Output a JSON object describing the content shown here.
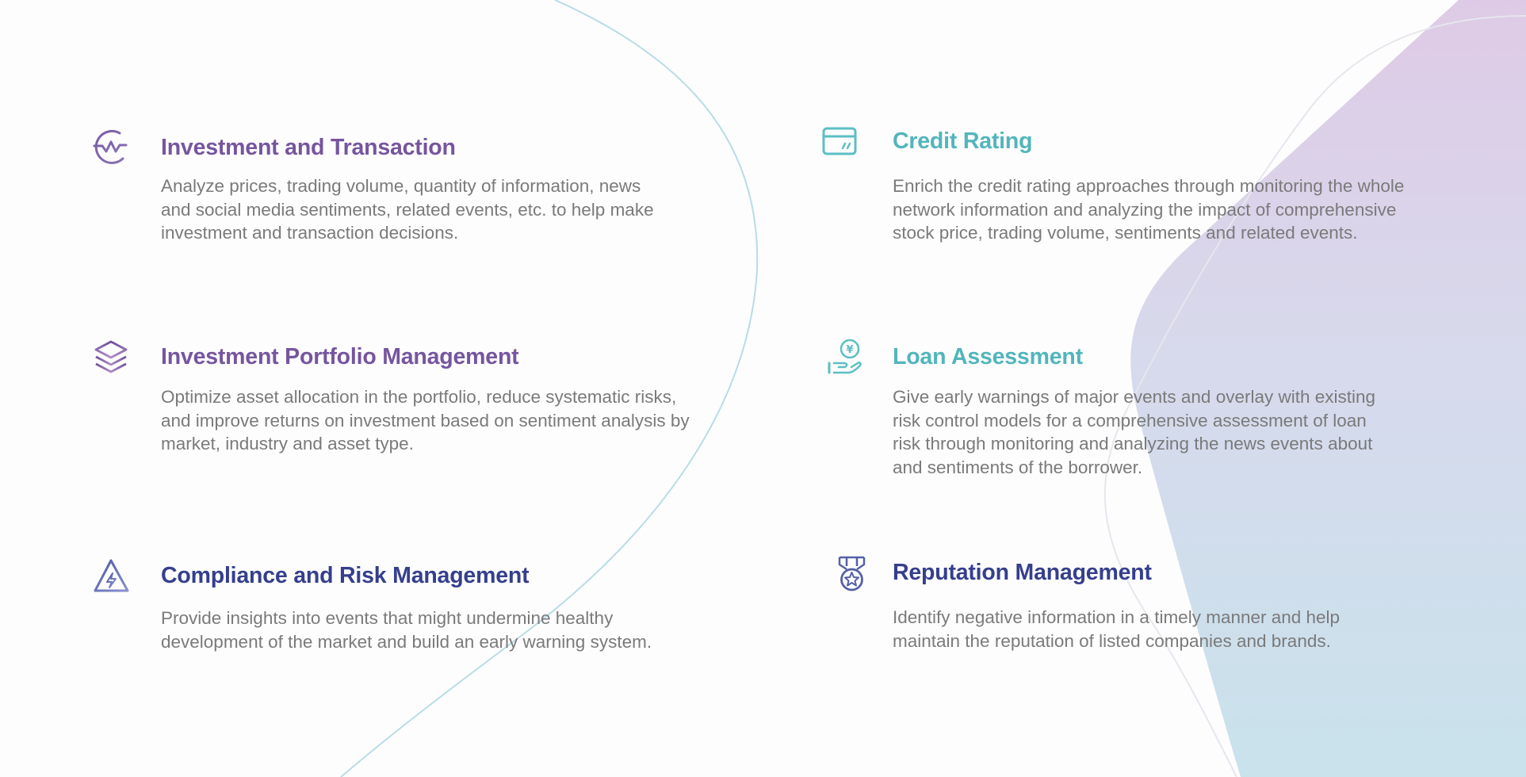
{
  "colors": {
    "purple": "#76559f",
    "teal": "#52b5bb",
    "navy": "#353f8c",
    "body_text": "#7a7a7a",
    "background": "#fdfdfd"
  },
  "features": [
    {
      "icon": "market-wave-icon",
      "title": "Investment and Transaction",
      "description": "Analyze prices, trading volume, quantity of information, news\nand social media sentiments, related events, etc. to help make\ninvestment and transaction decisions."
    },
    {
      "icon": "credit-card-icon",
      "title": "Credit Rating",
      "description": "Enrich the credit rating approaches through monitoring the whole\nnetwork information and analyzing the impact of comprehensive\nstock price, trading volume, sentiments and related events."
    },
    {
      "icon": "layers-icon",
      "title": "Investment Portfolio Management",
      "description": "Optimize asset allocation in the portfolio, reduce systematic risks,\nand improve returns on investment based on sentiment analysis by\nmarket, industry and asset type."
    },
    {
      "icon": "hand-yen-coin-icon",
      "title": "Loan Assessment",
      "description": "Give early warnings of major events and overlay with existing\nrisk control models for a comprehensive assessment of loan\nrisk through monitoring and analyzing the news events about\nand sentiments of the borrower."
    },
    {
      "icon": "warning-lightning-icon",
      "title": "Compliance and Risk Management",
      "description": "Provide insights into events that might undermine healthy\ndevelopment of the market and build an early warning system."
    },
    {
      "icon": "medal-star-icon",
      "title": "Reputation Management",
      "description": "Identify negative information in a timely manner and help\nmaintain the reputation of listed companies and brands."
    }
  ]
}
